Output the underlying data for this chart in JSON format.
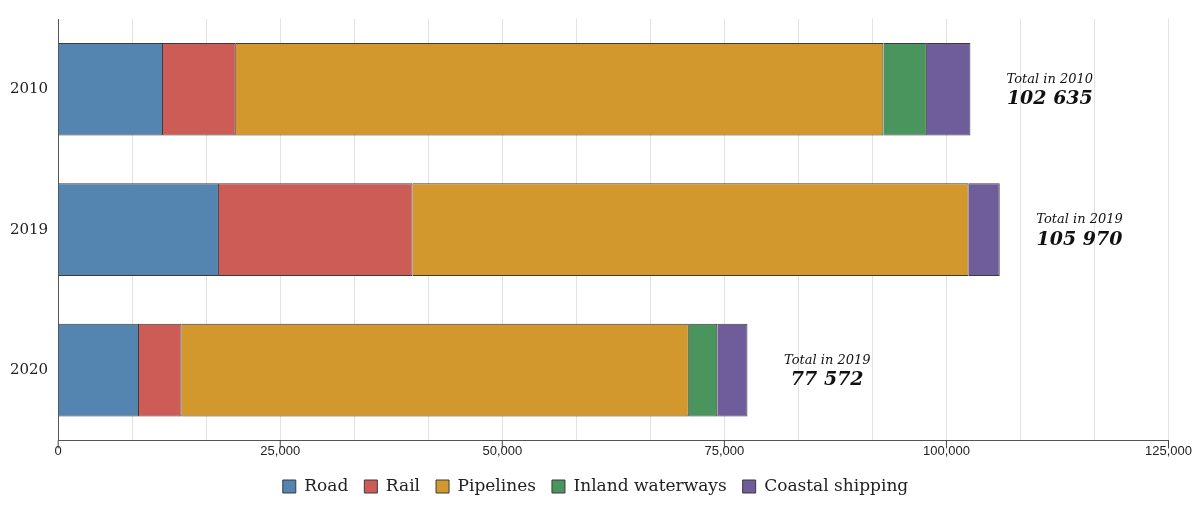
{
  "chart_data": {
    "type": "bar",
    "orientation": "horizontal",
    "stacked": true,
    "categories": [
      "2010",
      "2019",
      "2020"
    ],
    "series": [
      {
        "name": "Road",
        "color": "#5484b0",
        "values": [
          11800,
          18100,
          9100
        ]
      },
      {
        "name": "Rail",
        "color": "#cc5c55",
        "values": [
          8200,
          21800,
          4800
        ]
      },
      {
        "name": "Pipelines",
        "color": "#d3982d",
        "values": [
          72900,
          62600,
          57100
        ]
      },
      {
        "name": "Inland waterways",
        "color": "#4a945e",
        "values": [
          4900,
          0,
          3200
        ]
      },
      {
        "name": "Coastal shipping",
        "color": "#6f5d9b",
        "values": [
          4900,
          3500,
          3400
        ]
      }
    ],
    "xlim": [
      0,
      125000
    ],
    "xticks": [
      {
        "value": 0,
        "label": "0"
      },
      {
        "value": 8333.33,
        "label": null
      },
      {
        "value": 16666.67,
        "label": null
      },
      {
        "value": 25000,
        "label": "25,000"
      },
      {
        "value": 33333.33,
        "label": null
      },
      {
        "value": 41666.67,
        "label": null
      },
      {
        "value": 50000,
        "label": "50,000"
      },
      {
        "value": 58333.33,
        "label": null
      },
      {
        "value": 66666.67,
        "label": null
      },
      {
        "value": 75000,
        "label": "75,000"
      },
      {
        "value": 83333.33,
        "label": null
      },
      {
        "value": 91666.67,
        "label": null
      },
      {
        "value": 100000,
        "label": "100,000"
      },
      {
        "value": 108333.33,
        "label": null
      },
      {
        "value": 116666.67,
        "label": null
      },
      {
        "value": 125000,
        "label": "125,000"
      }
    ],
    "grid": "x",
    "legend": "bottom",
    "annotations": [
      {
        "text": "Total in 2010\n102 635",
        "x": 102635,
        "y": "2010"
      },
      {
        "text": "Total in 2019\n105 970",
        "x": 105970,
        "y": "2019"
      },
      {
        "text": "Total in 2019\n77 572",
        "x": 77572,
        "y": "2020"
      }
    ]
  }
}
